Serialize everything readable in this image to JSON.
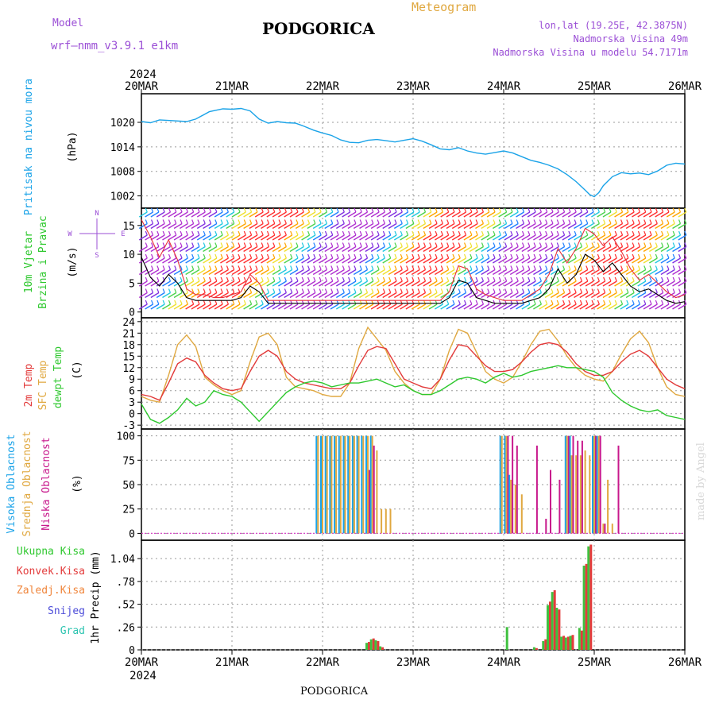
{
  "header": {
    "model_label": "Model",
    "model_name": "wrf–nmm_v3.9.1 e1km",
    "title": "PODGORICA",
    "meteogram": "Meteogram",
    "lonlat": "lon,lat (19.25E, 42.3875N)",
    "elevation": "Nadmorska Visina 49m",
    "model_elevation": "Nadmorska Visina u modelu 54.7171m",
    "footer": "PODGORICA",
    "watermark": "made by Angel"
  },
  "colors": {
    "pressure": "#1aa3e8",
    "wind_speed": "#000000",
    "gust": "#e8303a",
    "temp_2m": "#e23a3a",
    "temp_sfc": "#e0a840",
    "dewpoint": "#2ec82e",
    "cloud_high": "#1aa3e8",
    "cloud_mid": "#e0a840",
    "cloud_low": "#c8188c",
    "precip_total": "#3fc03f",
    "precip_conv": "#e33b3b",
    "axis_label_purple": "#9b4fd6"
  },
  "chart_data": [
    {
      "id": "pressure",
      "type": "line",
      "ylabel": "Pritisak na nivou mora",
      "unit": "(hPa)",
      "ylim": [
        999,
        1027
      ],
      "yticks": [
        1002,
        1008,
        1014,
        1020
      ],
      "x": [
        0,
        0.1,
        0.2,
        0.35,
        0.5,
        0.6,
        0.75,
        0.9,
        1.0,
        1.1,
        1.2,
        1.3,
        1.4,
        1.5,
        1.6,
        1.7,
        1.8,
        1.9,
        2.0,
        2.1,
        2.2,
        2.3,
        2.4,
        2.5,
        2.6,
        2.7,
        2.8,
        2.9,
        3.0,
        3.1,
        3.2,
        3.3,
        3.4,
        3.5,
        3.6,
        3.7,
        3.8,
        3.9,
        4.0,
        4.1,
        4.2,
        4.3,
        4.4,
        4.5,
        4.6,
        4.7,
        4.8,
        4.9,
        4.95,
        5.0,
        5.05,
        5.1,
        5.2,
        5.3,
        5.4,
        5.5,
        5.6,
        5.7,
        5.8,
        5.9,
        6.0
      ],
      "values": [
        1020.2,
        1019.9,
        1020.6,
        1020.4,
        1020.2,
        1020.8,
        1022.6,
        1023.3,
        1023.2,
        1023.4,
        1022.8,
        1020.8,
        1019.8,
        1020.2,
        1019.9,
        1019.8,
        1019.0,
        1018.1,
        1017.4,
        1016.8,
        1015.7,
        1015.1,
        1015.0,
        1015.6,
        1015.8,
        1015.5,
        1015.2,
        1015.6,
        1016.0,
        1015.4,
        1014.5,
        1013.5,
        1013.3,
        1013.8,
        1013.0,
        1012.5,
        1012.2,
        1012.6,
        1013.0,
        1012.5,
        1011.6,
        1010.7,
        1010.2,
        1009.5,
        1008.6,
        1007.2,
        1005.5,
        1003.4,
        1002.3,
        1001.8,
        1002.8,
        1004.5,
        1006.7,
        1007.7,
        1007.4,
        1007.6,
        1007.2,
        1008.1,
        1009.5,
        1010.0,
        1009.8
      ]
    },
    {
      "id": "wind",
      "type": "line",
      "ylabel": "10m Vjetar Brzina i Pravac",
      "unit": "(m/s)",
      "ylim": [
        -1,
        18
      ],
      "yticks": [
        0,
        5,
        10,
        15
      ],
      "compass": {
        "n": "N",
        "w": "W",
        "e": "E",
        "s": "S"
      },
      "x": [
        0,
        0.1,
        0.2,
        0.3,
        0.4,
        0.5,
        0.6,
        0.7,
        0.8,
        0.9,
        1.0,
        1.1,
        1.2,
        1.3,
        1.4,
        1.5,
        1.6,
        1.7,
        1.8,
        1.9,
        2.0,
        2.1,
        2.2,
        2.3,
        2.4,
        2.5,
        2.6,
        2.7,
        2.8,
        2.9,
        3.0,
        3.1,
        3.2,
        3.3,
        3.4,
        3.5,
        3.6,
        3.7,
        3.8,
        3.9,
        4.0,
        4.1,
        4.2,
        4.3,
        4.4,
        4.5,
        4.6,
        4.7,
        4.8,
        4.9,
        5.0,
        5.1,
        5.2,
        5.3,
        5.4,
        5.5,
        5.6,
        5.7,
        5.8,
        5.9,
        6.0
      ],
      "series": [
        {
          "name": "speed",
          "values": [
            9.5,
            6.0,
            4.5,
            6.5,
            5.0,
            2.5,
            2.0,
            2.0,
            2.0,
            2.0,
            2.0,
            2.5,
            4.5,
            3.5,
            1.5,
            1.5,
            1.5,
            1.5,
            1.5,
            1.5,
            1.5,
            1.5,
            1.5,
            1.5,
            1.5,
            1.5,
            1.5,
            1.5,
            1.5,
            1.5,
            1.5,
            1.5,
            1.5,
            1.5,
            2.5,
            5.5,
            5.0,
            2.5,
            2.0,
            1.5,
            1.5,
            1.5,
            1.5,
            2.0,
            2.5,
            4.0,
            7.5,
            5.0,
            6.5,
            10.0,
            9.0,
            7.0,
            8.5,
            6.5,
            4.5,
            3.5,
            4.0,
            3.0,
            2.0,
            1.5,
            1.8
          ]
        },
        {
          "name": "gust",
          "values": [
            16.0,
            13.0,
            9.5,
            12.5,
            9.0,
            4.0,
            3.0,
            3.0,
            2.5,
            2.5,
            3.0,
            3.5,
            6.5,
            5.0,
            2.0,
            2.0,
            2.0,
            2.0,
            2.0,
            2.0,
            2.0,
            2.0,
            2.0,
            2.0,
            2.0,
            2.0,
            2.0,
            2.0,
            2.0,
            2.0,
            2.0,
            2.0,
            2.0,
            2.0,
            3.5,
            8.0,
            7.5,
            4.0,
            3.0,
            2.5,
            2.0,
            2.0,
            2.0,
            3.0,
            4.0,
            6.5,
            11.0,
            8.5,
            11.0,
            14.5,
            13.5,
            11.5,
            13.0,
            10.5,
            7.5,
            5.5,
            6.5,
            5.0,
            3.5,
            2.5,
            3.0
          ]
        }
      ],
      "barb_colors": [
        "#ff3030",
        "#ffa500",
        "#f0e030",
        "#4cd24c",
        "#20c8e0",
        "#2080ff",
        "#8030e0",
        "#b030d0"
      ]
    },
    {
      "id": "temperature",
      "type": "line",
      "ylabel_parts": [
        "2m Temp",
        "SFC Temp",
        "dewpt Temp"
      ],
      "unit": "(C)",
      "ylim": [
        -4,
        25
      ],
      "yticks": [
        -3,
        0,
        3,
        6,
        9,
        12,
        15,
        18,
        21,
        24
      ],
      "x": [
        0,
        0.1,
        0.2,
        0.3,
        0.4,
        0.5,
        0.6,
        0.7,
        0.8,
        0.9,
        1.0,
        1.1,
        1.2,
        1.3,
        1.4,
        1.5,
        1.6,
        1.7,
        1.8,
        1.9,
        2.0,
        2.1,
        2.2,
        2.3,
        2.4,
        2.5,
        2.6,
        2.7,
        2.8,
        2.9,
        3.0,
        3.1,
        3.2,
        3.3,
        3.4,
        3.5,
        3.6,
        3.7,
        3.8,
        3.9,
        4.0,
        4.1,
        4.2,
        4.3,
        4.4,
        4.5,
        4.6,
        4.7,
        4.8,
        4.9,
        5.0,
        5.1,
        5.2,
        5.3,
        5.4,
        5.5,
        5.6,
        5.7,
        5.8,
        5.9,
        6.0
      ],
      "series": [
        {
          "name": "2m Temp",
          "values": [
            5.0,
            4.5,
            3.5,
            8.0,
            13.0,
            14.5,
            13.5,
            10.0,
            8.0,
            6.5,
            6.0,
            6.5,
            11.0,
            15.0,
            16.5,
            15.0,
            11.0,
            9.0,
            8.0,
            7.5,
            7.0,
            6.5,
            6.5,
            8.0,
            12.5,
            16.5,
            17.5,
            17.0,
            13.0,
            9.0,
            8.0,
            7.0,
            6.5,
            9.0,
            14.0,
            18.0,
            17.5,
            15.0,
            12.5,
            11.0,
            11.0,
            11.5,
            13.5,
            16.0,
            18.0,
            18.5,
            18.0,
            16.0,
            13.0,
            11.0,
            10.0,
            10.0,
            11.0,
            13.5,
            15.5,
            16.5,
            15.0,
            12.0,
            9.0,
            7.5,
            6.5
          ]
        },
        {
          "name": "SFC Temp",
          "values": [
            4.5,
            3.5,
            3.0,
            10.0,
            18.0,
            20.5,
            17.5,
            9.5,
            7.5,
            6.0,
            5.0,
            6.0,
            13.5,
            20.0,
            21.0,
            18.0,
            9.5,
            7.0,
            6.5,
            6.0,
            5.0,
            4.5,
            4.5,
            8.0,
            17.0,
            22.5,
            19.5,
            16.5,
            11.0,
            8.0,
            6.0,
            5.0,
            5.0,
            9.0,
            16.5,
            22.0,
            21.0,
            16.0,
            11.0,
            9.0,
            8.0,
            9.5,
            13.5,
            18.0,
            21.5,
            22.0,
            19.0,
            15.0,
            12.0,
            10.0,
            9.0,
            8.5,
            11.0,
            15.5,
            19.5,
            21.5,
            18.5,
            12.0,
            7.0,
            5.0,
            4.5
          ]
        },
        {
          "name": "dewpt Temp",
          "values": [
            2.5,
            -1.5,
            -2.5,
            -1.0,
            1.0,
            4.0,
            2.0,
            3.0,
            6.0,
            5.0,
            4.5,
            3.0,
            0.5,
            -2.0,
            0.5,
            3.0,
            5.5,
            7.0,
            8.0,
            8.5,
            8.0,
            7.0,
            7.5,
            8.0,
            8.0,
            8.5,
            9.0,
            8.0,
            7.0,
            7.5,
            6.0,
            5.0,
            5.0,
            6.0,
            7.5,
            9.0,
            9.5,
            9.0,
            8.0,
            9.5,
            10.5,
            9.5,
            10.0,
            11.0,
            11.5,
            12.0,
            12.5,
            12.0,
            12.0,
            11.5,
            11.0,
            9.5,
            5.5,
            3.5,
            2.0,
            1.0,
            0.5,
            1.0,
            -0.5,
            -1.0,
            -1.5
          ]
        }
      ]
    },
    {
      "id": "cloud",
      "type": "bar",
      "ylabel_parts": [
        "Visoka Oblacnost",
        "Srednja Oblacnost",
        "Niska Oblacnost"
      ],
      "unit": "(%)",
      "ylim": [
        -7,
        107
      ],
      "yticks": [
        0,
        25,
        50,
        75,
        100
      ],
      "x": [
        1.95,
        2.0,
        2.05,
        2.1,
        2.15,
        2.2,
        2.25,
        2.3,
        2.35,
        2.4,
        2.45,
        2.5,
        2.55,
        2.6,
        2.65,
        2.7,
        2.75,
        2.8,
        3.98,
        4.03,
        4.08,
        4.13,
        4.2,
        4.35,
        4.45,
        4.5,
        4.6,
        4.7,
        4.75,
        4.8,
        4.85,
        4.9,
        4.95,
        5.0,
        5.05,
        5.1,
        5.15,
        5.2,
        5.25
      ],
      "series": [
        {
          "name": "high",
          "values": [
            100,
            100,
            100,
            100,
            100,
            100,
            100,
            100,
            100,
            100,
            100,
            100,
            100,
            0,
            0,
            0,
            0,
            0,
            100,
            100,
            60,
            0,
            0,
            0,
            0,
            0,
            0,
            100,
            100,
            0,
            0,
            0,
            0,
            100,
            100,
            0,
            0,
            0,
            0
          ]
        },
        {
          "name": "mid",
          "values": [
            100,
            100,
            100,
            100,
            100,
            100,
            100,
            100,
            100,
            100,
            100,
            100,
            100,
            85,
            25,
            25,
            25,
            0,
            100,
            100,
            55,
            50,
            40,
            0,
            0,
            0,
            0,
            100,
            80,
            80,
            80,
            85,
            80,
            100,
            100,
            10,
            55,
            10,
            0
          ],
          "label": "mid"
        },
        {
          "name": "low",
          "values": [
            0,
            0,
            0,
            0,
            0,
            0,
            0,
            0,
            0,
            0,
            0,
            65,
            90,
            0,
            0,
            0,
            0,
            0,
            0,
            100,
            100,
            90,
            0,
            90,
            15,
            65,
            55,
            100,
            100,
            95,
            95,
            0,
            0,
            100,
            100,
            10,
            0,
            0,
            90
          ]
        }
      ]
    },
    {
      "id": "precip",
      "type": "bar",
      "legend": [
        "Ukupna Kisa",
        "Konvek.Kisa",
        "Zaledj.Kisa",
        "Snijeg",
        "Grad"
      ],
      "ylabel": "1hr Precip (mm)",
      "ylim": [
        0,
        1.25
      ],
      "yticks": [
        0,
        0.26,
        0.52,
        0.78,
        1.04
      ],
      "x": [
        2.5,
        2.55,
        2.6,
        2.65,
        4.05,
        4.35,
        4.45,
        4.5,
        4.55,
        4.6,
        4.65,
        4.7,
        4.75,
        4.85,
        4.9,
        4.95
      ],
      "series": [
        {
          "name": "Ukupna Kisa",
          "values": [
            0.08,
            0.12,
            0.11,
            0.04,
            0.26,
            0.03,
            0.1,
            0.51,
            0.66,
            0.48,
            0.15,
            0.14,
            0.16,
            0.25,
            0.96,
            1.18
          ]
        },
        {
          "name": "Konvek.Kisa",
          "values": [
            0.09,
            0.13,
            0.1,
            0.03,
            0.0,
            0.02,
            0.12,
            0.55,
            0.68,
            0.46,
            0.16,
            0.15,
            0.17,
            0.22,
            0.98,
            1.2
          ]
        }
      ]
    }
  ],
  "x_axis": {
    "year": "2024",
    "days": [
      "20MAR",
      "21MAR",
      "22MAR",
      "23MAR",
      "24MAR",
      "25MAR",
      "26MAR"
    ]
  },
  "panel_labels": {
    "pressure_side": "Pritisak na nivou mora",
    "pressure_unit": "(hPa)",
    "wind_side1": "10m Vjetar",
    "wind_side2": "Brzina i Pravac",
    "wind_unit": "(m/s)",
    "temp_2m": "2m Temp",
    "temp_sfc": "SFC Temp",
    "temp_dew": "dewpt Temp",
    "temp_unit": "(C)",
    "cloud_high": "Visoka Oblacnost",
    "cloud_mid": "Srednja Oblacnost",
    "cloud_low": "Niska Oblacnost",
    "cloud_unit": "(%)",
    "precip_unit": "1hr Precip (mm)",
    "legend_total": "Ukupna Kisa",
    "legend_conv": "Konvek.Kisa",
    "legend_freezing": "Zaledj.Kisa",
    "legend_snow": "Snijeg",
    "legend_hail": "Grad"
  }
}
